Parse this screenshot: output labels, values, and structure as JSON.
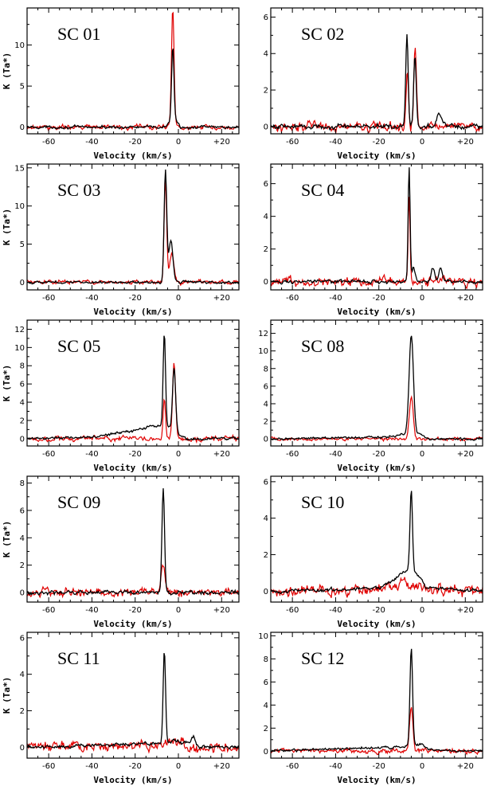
{
  "colors": {
    "series_1": "#000000",
    "series_2": "#e00000",
    "axes": "#000000"
  },
  "chart_data": [
    {
      "type": "line",
      "title": "SC 01",
      "xlabel": "Velocity (km/s)",
      "ylabel": "K (Ta*)",
      "xlim": [
        -70,
        28
      ],
      "ylim": [
        -0.8,
        14.5
      ],
      "xticks": [
        -60,
        -40,
        -20,
        0,
        20
      ],
      "xtick_labels": [
        "-60",
        "-40",
        "-20",
        "0",
        "+20"
      ],
      "yticks": [
        0,
        5,
        10
      ],
      "ytick_labels": [
        "0",
        "5",
        "10"
      ],
      "series": [
        {
          "noise": 0.12,
          "baseline": [
            [
              -70,
              0
            ],
            [
              -6,
              0
            ],
            [
              -4.5,
              0.6
            ],
            [
              0,
              0.6
            ],
            [
              1,
              0
            ],
            [
              28,
              0
            ]
          ],
          "peaks": [
            {
              "center": -2.6,
              "amplitude": 9.2,
              "sigma": 0.55
            }
          ]
        },
        {
          "noise": 0.22,
          "baseline": [
            [
              -70,
              0
            ],
            [
              28,
              0
            ]
          ],
          "peaks": [
            {
              "center": -2.6,
              "amplitude": 14.5,
              "sigma": 0.6
            }
          ]
        }
      ]
    },
    {
      "type": "line",
      "title": "SC 02",
      "xlabel": "Velocity (km/s)",
      "ylabel": "",
      "xlim": [
        -70,
        28
      ],
      "ylim": [
        -0.4,
        6.5
      ],
      "xticks": [
        -60,
        -40,
        -20,
        0,
        20
      ],
      "xtick_labels": [
        "-60",
        "-40",
        "-20",
        "0",
        "+20"
      ],
      "yticks": [
        0,
        2,
        4,
        6
      ],
      "ytick_labels": [
        "0",
        "2",
        "4",
        "6"
      ],
      "series": [
        {
          "noise": 0.1,
          "baseline": [
            [
              -70,
              0
            ],
            [
              28,
              0
            ]
          ],
          "peaks": [
            {
              "center": -7,
              "amplitude": 5.1,
              "sigma": 0.55
            },
            {
              "center": -3.3,
              "amplitude": 3.9,
              "sigma": 0.6
            },
            {
              "center": 8,
              "amplitude": 0.7,
              "sigma": 1.2
            }
          ]
        },
        {
          "noise": 0.18,
          "baseline": [
            [
              -70,
              0
            ],
            [
              28,
              0
            ]
          ],
          "peaks": [
            {
              "center": -6.8,
              "amplitude": 3.2,
              "sigma": 0.55
            },
            {
              "center": -3.2,
              "amplitude": 4.4,
              "sigma": 0.6
            }
          ]
        }
      ]
    },
    {
      "type": "line",
      "title": "SC 03",
      "xlabel": "Velocity (km/s)",
      "ylabel": "K (Ta*)",
      "xlim": [
        -70,
        28
      ],
      "ylim": [
        -1,
        15.5
      ],
      "xticks": [
        -60,
        -40,
        -20,
        0,
        20
      ],
      "xtick_labels": [
        "-60",
        "-40",
        "-20",
        "0",
        "+20"
      ],
      "yticks": [
        0,
        5,
        10,
        15
      ],
      "ytick_labels": [
        "0",
        "5",
        "10",
        "15"
      ],
      "series": [
        {
          "noise": 0.12,
          "baseline": [
            [
              -70,
              0
            ],
            [
              28,
              0
            ]
          ],
          "peaks": [
            {
              "center": -6,
              "amplitude": 14.6,
              "sigma": 0.6
            },
            {
              "center": -3.5,
              "amplitude": 5.5,
              "sigma": 1.0
            }
          ]
        },
        {
          "noise": 0.2,
          "baseline": [
            [
              -70,
              0
            ],
            [
              28,
              0
            ]
          ],
          "peaks": [
            {
              "center": -6,
              "amplitude": 13.5,
              "sigma": 0.6
            },
            {
              "center": -3,
              "amplitude": 3.8,
              "sigma": 1.0
            }
          ]
        }
      ]
    },
    {
      "type": "line",
      "title": "SC 04",
      "xlabel": "Velocity (km/s)",
      "ylabel": "",
      "xlim": [
        -70,
        28
      ],
      "ylim": [
        -0.5,
        7.2
      ],
      "xticks": [
        -60,
        -40,
        -20,
        0,
        20
      ],
      "xtick_labels": [
        "-60",
        "-40",
        "-20",
        "0",
        "+20"
      ],
      "yticks": [
        0,
        2,
        4,
        6
      ],
      "ytick_labels": [
        "0",
        "2",
        "4",
        "6"
      ],
      "series": [
        {
          "noise": 0.08,
          "baseline": [
            [
              -70,
              0
            ],
            [
              28,
              0
            ]
          ],
          "peaks": [
            {
              "center": -6,
              "amplitude": 7.1,
              "sigma": 0.45
            },
            {
              "center": -4,
              "amplitude": 0.9,
              "sigma": 0.8
            },
            {
              "center": 5,
              "amplitude": 0.8,
              "sigma": 0.8
            },
            {
              "center": 8.5,
              "amplitude": 0.9,
              "sigma": 0.8
            }
          ]
        },
        {
          "noise": 0.2,
          "baseline": [
            [
              -70,
              0
            ],
            [
              28,
              0
            ]
          ],
          "peaks": [
            {
              "center": -6,
              "amplitude": 5.2,
              "sigma": 0.45
            }
          ]
        }
      ]
    },
    {
      "type": "line",
      "title": "SC 05",
      "xlabel": "Velocity (km/s)",
      "ylabel": "K (Ta*)",
      "xlim": [
        -70,
        28
      ],
      "ylim": [
        -0.8,
        13
      ],
      "xticks": [
        -60,
        -40,
        -20,
        0,
        20
      ],
      "xtick_labels": [
        "-60",
        "-40",
        "-20",
        "0",
        "+20"
      ],
      "yticks": [
        0,
        2,
        4,
        6,
        8,
        10,
        12
      ],
      "ytick_labels": [
        "0",
        "2",
        "4",
        "6",
        "8",
        "10",
        "12"
      ],
      "series": [
        {
          "noise": 0.12,
          "baseline": [
            [
              -70,
              0
            ],
            [
              -40,
              0.2
            ],
            [
              -20,
              0.9
            ],
            [
              -12,
              1.4
            ],
            [
              -5,
              1.3
            ],
            [
              0,
              0.5
            ],
            [
              3,
              0
            ],
            [
              28,
              0
            ]
          ],
          "peaks": [
            {
              "center": -6.5,
              "amplitude": 10.3,
              "sigma": 0.55
            },
            {
              "center": -2,
              "amplitude": 7.0,
              "sigma": 0.7
            }
          ]
        },
        {
          "noise": 0.2,
          "baseline": [
            [
              -70,
              0
            ],
            [
              28,
              0
            ]
          ],
          "peaks": [
            {
              "center": -6.5,
              "amplitude": 4.5,
              "sigma": 0.55
            },
            {
              "center": -2,
              "amplitude": 8.4,
              "sigma": 0.7
            }
          ]
        }
      ]
    },
    {
      "type": "line",
      "title": "SC 08",
      "xlabel": "Velocity (km/s)",
      "ylabel": "",
      "xlim": [
        -70,
        28
      ],
      "ylim": [
        -0.8,
        13.5
      ],
      "xticks": [
        -60,
        -40,
        -20,
        0,
        20
      ],
      "xtick_labels": [
        "-60",
        "-40",
        "-20",
        "0",
        "+20"
      ],
      "yticks": [
        0,
        2,
        4,
        6,
        8,
        10,
        12
      ],
      "ytick_labels": [
        "0",
        "2",
        "4",
        "6",
        "8",
        "10",
        "12"
      ],
      "series": [
        {
          "noise": 0.1,
          "baseline": [
            [
              -70,
              0
            ],
            [
              -15,
              0.2
            ],
            [
              -9,
              0.5
            ],
            [
              0,
              0.5
            ],
            [
              2,
              0
            ],
            [
              28,
              0
            ]
          ],
          "peaks": [
            {
              "center": -5,
              "amplitude": 11.3,
              "sigma": 1.0
            }
          ]
        },
        {
          "noise": 0.15,
          "baseline": [
            [
              -70,
              0
            ],
            [
              28,
              0
            ]
          ],
          "peaks": [
            {
              "center": -5,
              "amplitude": 4.8,
              "sigma": 0.9
            }
          ]
        }
      ]
    },
    {
      "type": "line",
      "title": "SC 09",
      "xlabel": "Velocity (km/s)",
      "ylabel": "K (Ta*)",
      "xlim": [
        -70,
        28
      ],
      "ylim": [
        -0.7,
        8.5
      ],
      "xticks": [
        -60,
        -40,
        -20,
        0,
        20
      ],
      "xtick_labels": [
        "-60",
        "-40",
        "-20",
        "0",
        "+20"
      ],
      "yticks": [
        0,
        2,
        4,
        6,
        8
      ],
      "ytick_labels": [
        "0",
        "2",
        "4",
        "6",
        "8"
      ],
      "series": [
        {
          "noise": 0.1,
          "baseline": [
            [
              -70,
              0
            ],
            [
              28,
              0
            ]
          ],
          "peaks": [
            {
              "center": -7,
              "amplitude": 7.6,
              "sigma": 0.6
            }
          ]
        },
        {
          "noise": 0.22,
          "baseline": [
            [
              -70,
              0
            ],
            [
              28,
              0
            ]
          ],
          "peaks": [
            {
              "center": -7,
              "amplitude": 1.9,
              "sigma": 0.9
            }
          ]
        }
      ]
    },
    {
      "type": "line",
      "title": "SC 10",
      "xlabel": "Velocity (km/s)",
      "ylabel": "",
      "xlim": [
        -70,
        28
      ],
      "ylim": [
        -0.6,
        6.3
      ],
      "xticks": [
        -60,
        -40,
        -20,
        0,
        20
      ],
      "xtick_labels": [
        "-60",
        "-40",
        "-20",
        "0",
        "+20"
      ],
      "yticks": [
        0,
        2,
        4,
        6
      ],
      "ytick_labels": [
        "0",
        "2",
        "4",
        "6"
      ],
      "series": [
        {
          "noise": 0.07,
          "baseline": [
            [
              -70,
              0
            ],
            [
              -20,
              0.15
            ],
            [
              -12,
              0.7
            ],
            [
              -6,
              1.3
            ],
            [
              -2,
              0.9
            ],
            [
              2,
              0.2
            ],
            [
              28,
              0
            ]
          ],
          "peaks": [
            {
              "center": -5,
              "amplitude": 4.4,
              "sigma": 0.55
            }
          ]
        },
        {
          "noise": 0.25,
          "baseline": [
            [
              -70,
              0
            ],
            [
              -20,
              0.1
            ],
            [
              -8,
              0.6
            ],
            [
              -2,
              0.3
            ],
            [
              5,
              0
            ],
            [
              28,
              0
            ]
          ],
          "peaks": []
        }
      ]
    },
    {
      "type": "line",
      "title": "SC 11",
      "xlabel": "Velocity (km/s)",
      "ylabel": "K (Ta*)",
      "xlim": [
        -70,
        28
      ],
      "ylim": [
        -0.6,
        6.3
      ],
      "xticks": [
        -60,
        -40,
        -20,
        0,
        20
      ],
      "xtick_labels": [
        "-60",
        "-40",
        "-20",
        "0",
        "+20"
      ],
      "yticks": [
        0,
        2,
        4,
        6
      ],
      "ytick_labels": [
        "0",
        "2",
        "4",
        "6"
      ],
      "series": [
        {
          "noise": 0.08,
          "baseline": [
            [
              -70,
              0
            ],
            [
              -10,
              0.2
            ],
            [
              -2,
              0.35
            ],
            [
              4,
              0.25
            ],
            [
              10,
              0
            ],
            [
              28,
              0
            ]
          ],
          "peaks": [
            {
              "center": -6.5,
              "amplitude": 5.0,
              "sigma": 0.55
            },
            {
              "center": 7,
              "amplitude": 0.5,
              "sigma": 0.8
            }
          ]
        },
        {
          "noise": 0.22,
          "baseline": [
            [
              -70,
              0
            ],
            [
              -10,
              0.1
            ],
            [
              -3,
              0.4
            ],
            [
              3,
              0
            ],
            [
              28,
              0
            ]
          ],
          "peaks": []
        }
      ]
    },
    {
      "type": "line",
      "title": "SC 12",
      "xlabel": "Velocity (km/s)",
      "ylabel": "",
      "xlim": [
        -70,
        28
      ],
      "ylim": [
        -0.6,
        10.3
      ],
      "xticks": [
        -60,
        -40,
        -20,
        0,
        20
      ],
      "xtick_labels": [
        "-60",
        "-40",
        "-20",
        "0",
        "+20"
      ],
      "yticks": [
        0,
        2,
        4,
        6,
        8,
        10
      ],
      "ytick_labels": [
        "0",
        "2",
        "4",
        "6",
        "8",
        "10"
      ],
      "series": [
        {
          "noise": 0.08,
          "baseline": [
            [
              -70,
              0
            ],
            [
              -8,
              0.4
            ],
            [
              0,
              0.6
            ],
            [
              3,
              0.1
            ],
            [
              28,
              0
            ]
          ],
          "peaks": [
            {
              "center": -5,
              "amplitude": 8.6,
              "sigma": 0.6
            }
          ]
        },
        {
          "noise": 0.15,
          "baseline": [
            [
              -70,
              0
            ],
            [
              28,
              0
            ]
          ],
          "peaks": [
            {
              "center": -5,
              "amplitude": 3.8,
              "sigma": 0.8
            }
          ]
        }
      ]
    }
  ]
}
